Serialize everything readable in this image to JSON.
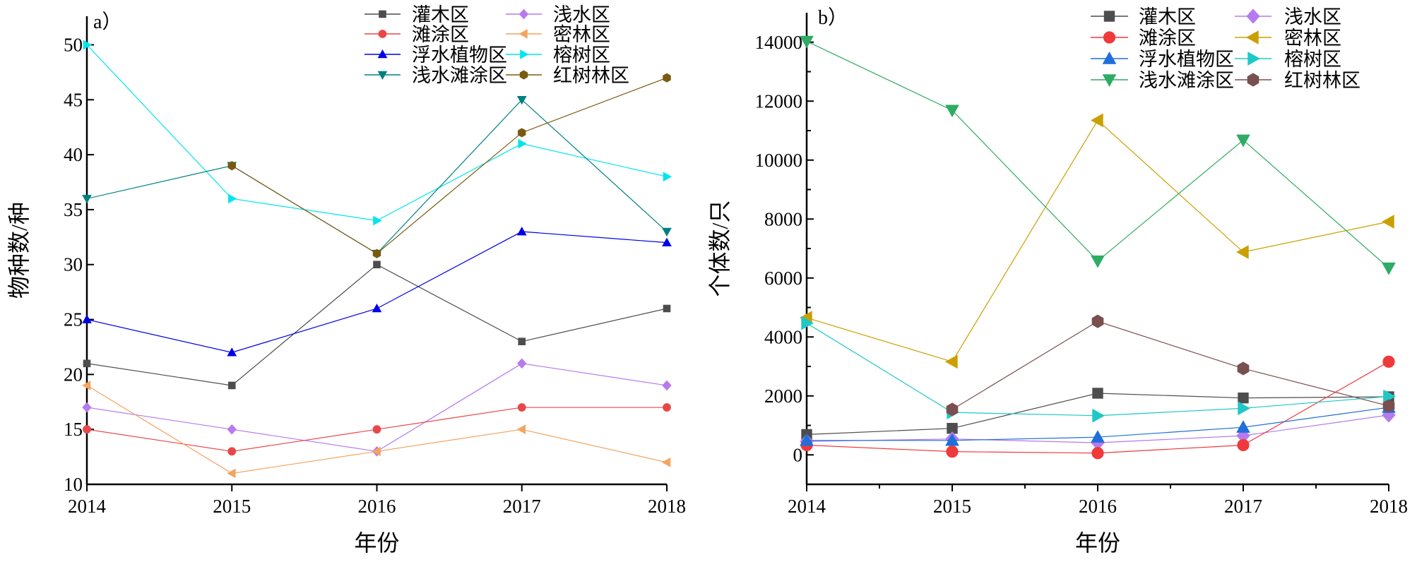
{
  "chart_data": [
    {
      "type": "line",
      "panel_label": "a）",
      "xlabel": "年份",
      "ylabel": "物种数/种",
      "x": [
        2014,
        2015,
        2016,
        2017,
        2018
      ],
      "xticks": [
        "2014",
        "2015",
        "2016",
        "2017",
        "2018"
      ],
      "ylim": [
        10,
        52.6
      ],
      "yticks": [
        10,
        15,
        20,
        25,
        30,
        35,
        40,
        45,
        50
      ],
      "ytick_labels": [
        "10",
        "15",
        "20",
        "25",
        "30",
        "35",
        "40",
        "45",
        "50"
      ],
      "legend_placement": "top-right",
      "series": [
        {
          "name": "灌木区",
          "marker": "square",
          "color": "#4d4d4d",
          "values": [
            21,
            19,
            30,
            23,
            26
          ]
        },
        {
          "name": "浅水区",
          "marker": "diamond",
          "color": "#b77af0",
          "values": [
            17,
            15,
            13,
            21,
            19
          ]
        },
        {
          "name": "滩涂区",
          "marker": "circle",
          "color": "#e8474a",
          "values": [
            15,
            13,
            15,
            17,
            17
          ]
        },
        {
          "name": "密林区",
          "marker": "triangle-left",
          "color": "#f4a460",
          "values": [
            19,
            11,
            13,
            15,
            12
          ]
        },
        {
          "name": "浮水植物区",
          "marker": "triangle-up",
          "color": "#0000e6",
          "values": [
            25,
            22,
            26,
            33,
            32
          ]
        },
        {
          "name": "榕树区",
          "marker": "triangle-right",
          "color": "#00e5ee",
          "values": [
            50,
            36,
            34,
            41,
            38
          ]
        },
        {
          "name": "浅水滩涂区",
          "marker": "triangle-down",
          "color": "#008080",
          "values": [
            36,
            39,
            31,
            45,
            33
          ]
        },
        {
          "name": "红树林区",
          "marker": "hexagon",
          "color": "#7a5a10",
          "values": [
            null,
            39,
            31,
            42,
            47
          ]
        }
      ]
    },
    {
      "type": "line",
      "panel_label": "b）",
      "xlabel": "年份",
      "ylabel": "个体数/只",
      "x": [
        2014,
        2015,
        2016,
        2017,
        2018
      ],
      "xticks": [
        "2014",
        "2015",
        "2016",
        "2017",
        "2018"
      ],
      "ylim": [
        -1000,
        15000
      ],
      "yticks": [
        0,
        2000,
        4000,
        6000,
        8000,
        10000,
        12000,
        14000
      ],
      "ytick_labels": [
        "0",
        "2000",
        "4000",
        "6000",
        "8000",
        "10000",
        "12000",
        "14000"
      ],
      "legend_placement": "top-right",
      "series": [
        {
          "name": "灌木区",
          "marker": "square",
          "color": "#4d4d4d",
          "values": [
            690,
            900,
            2090,
            1930,
            1970
          ]
        },
        {
          "name": "浅水区",
          "marker": "diamond",
          "color": "#b57bee",
          "values": [
            455,
            540,
            410,
            650,
            1350
          ]
        },
        {
          "name": "滩涂区",
          "marker": "circle",
          "color": "#f0393b",
          "values": [
            330,
            110,
            60,
            330,
            3160
          ]
        },
        {
          "name": "密林区",
          "marker": "triangle-left",
          "color": "#c9a000",
          "values": [
            4650,
            3160,
            11350,
            6880,
            7910
          ]
        },
        {
          "name": "浮水植物区",
          "marker": "triangle-up",
          "color": "#1e6fd9",
          "values": [
            490,
            490,
            600,
            935,
            1610
          ]
        },
        {
          "name": "榕树区",
          "marker": "triangle-right",
          "color": "#1ec8c8",
          "values": [
            4470,
            1440,
            1330,
            1580,
            1980
          ]
        },
        {
          "name": "浅水滩涂区",
          "marker": "triangle-down",
          "color": "#2eab64",
          "values": [
            14030,
            11690,
            6580,
            10680,
            6340
          ]
        },
        {
          "name": "红树林区",
          "marker": "hexagon",
          "color": "#7a4f4f",
          "values": [
            null,
            1540,
            4530,
            2930,
            1660
          ]
        }
      ]
    }
  ]
}
